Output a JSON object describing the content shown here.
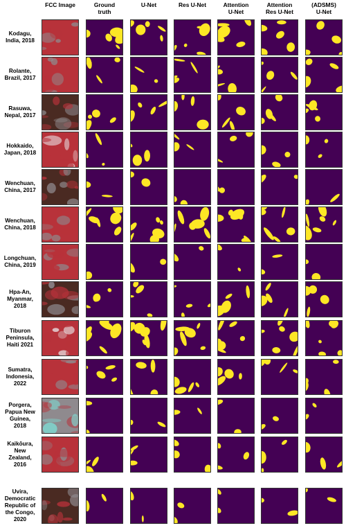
{
  "columns": [
    "FCC Image",
    "Ground\ntruth",
    "U-Net",
    "Res U-Net",
    "Attention\nU-Net",
    "Attention\nRes U-Net",
    "(ADSMS)\nU-Net"
  ],
  "rows": [
    {
      "label": "Kodagu,\nIndia, 2018",
      "fcc": "vegetated red with grey patches",
      "fill": 0.35
    },
    {
      "label": "Rolante,\nBrazil, 2017",
      "fcc": "blue-grey with red",
      "fill": 0.25
    },
    {
      "label": "Rasuwa,\nNepal, 2017",
      "fcc": "brown-grey",
      "fill": 0.3
    },
    {
      "label": "Hokkaido,\nJapan, 2018",
      "fcc": "bright red and white",
      "fill": 0.2
    },
    {
      "label": "Wenchuan,\nChina, 2017",
      "fcc": "dark red-brown",
      "fill": 0.15
    },
    {
      "label": "Wenchuan,\nChina, 2018",
      "fcc": "red with grey",
      "fill": 0.4
    },
    {
      "label": "Longchuan,\nChina, 2019",
      "fcc": "red",
      "fill": 0.1
    },
    {
      "label": "Hpa-An,\nMyanmar,\n2018",
      "fcc": "brown-grey",
      "fill": 0.3
    },
    {
      "label": "Tiburon\nPeninsula,\nHaiti 2021",
      "fcc": "grey-white",
      "fill": 0.4
    },
    {
      "label": "Sumatra,\nIndonesia,\n2022",
      "fcc": "grey-red",
      "fill": 0.25
    },
    {
      "label": "Porgera,\nPapua New\nGuinea,\n2018",
      "fcc": "cyan-grey",
      "fill": 0.05
    },
    {
      "label": "Kaikōura,\nNew\nZealand,\n2016",
      "fcc": "red-grey",
      "fill": 0.2
    },
    {
      "label": "Uvira,\nDemocratic\nRepublic of\nthe Congo,\n2020",
      "fcc": "red-brown",
      "fill": 0.08
    }
  ],
  "colors": {
    "background_mask": "#440154",
    "landslide_mask": "#fde725",
    "fcc_red": "#b8323a",
    "fcc_grey": "#8f8a8e",
    "fcc_cyan": "#7fd6cf",
    "fcc_dark": "#4a2a22"
  }
}
